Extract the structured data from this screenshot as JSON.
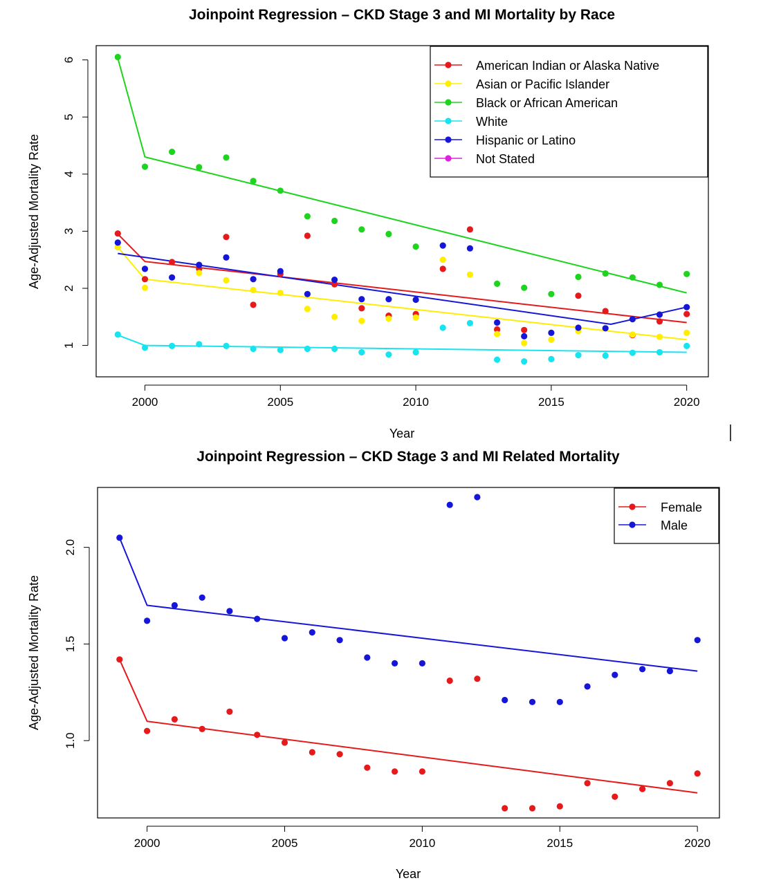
{
  "chart_data": [
    {
      "type": "scatter",
      "title": "Joinpoint Regression – CKD Stage 3 and MI Mortality by Race",
      "xlabel": "Year",
      "ylabel": "Age-Adjusted Mortality Rate",
      "xlim": [
        1998.2,
        2020.8
      ],
      "ylim": [
        0.45,
        6.25
      ],
      "xticks": [
        2000,
        2005,
        2010,
        2015,
        2020
      ],
      "yticks": [
        1,
        2,
        3,
        4,
        5,
        6
      ],
      "legend_position": "top-right",
      "x": [
        1999,
        2000,
        2001,
        2002,
        2003,
        2004,
        2005,
        2006,
        2007,
        2008,
        2009,
        2010,
        2011,
        2012,
        2013,
        2014,
        2015,
        2016,
        2017,
        2018,
        2019,
        2020
      ],
      "series": [
        {
          "name": "American Indian or Alaska Native",
          "color": "#e41a1c",
          "values": [
            2.96,
            2.16,
            2.46,
            2.34,
            2.9,
            1.71,
            2.25,
            2.92,
            2.07,
            1.65,
            1.52,
            1.55,
            2.34,
            3.03,
            1.28,
            1.27,
            null,
            1.87,
            1.6,
            1.18,
            1.42,
            1.55
          ],
          "fit": [
            [
              1999,
              2.95
            ],
            [
              2000,
              2.47
            ],
            [
              2020,
              1.4
            ]
          ]
        },
        {
          "name": "Asian or Pacific Islander",
          "color": "#ffee00",
          "values": [
            2.72,
            2.01,
            null,
            2.27,
            2.14,
            1.97,
            1.92,
            1.64,
            1.5,
            1.43,
            1.47,
            1.49,
            2.5,
            2.24,
            1.2,
            1.04,
            1.1,
            1.25,
            null,
            1.19,
            1.15,
            1.22
          ],
          "fit": [
            [
              1999,
              2.72
            ],
            [
              2000,
              2.16
            ],
            [
              2020,
              1.1
            ]
          ]
        },
        {
          "name": "Black or African American",
          "color": "#1ed41e",
          "values": [
            6.05,
            4.13,
            4.39,
            4.12,
            4.29,
            3.88,
            3.71,
            3.26,
            3.18,
            3.03,
            2.95,
            2.73,
            null,
            null,
            2.08,
            2.01,
            1.9,
            2.2,
            2.26,
            2.19,
            2.06,
            2.25
          ],
          "fit": [
            [
              1999,
              6.03
            ],
            [
              2000,
              4.3
            ],
            [
              2020,
              1.92
            ]
          ]
        },
        {
          "name": "White",
          "color": "#18e4f0",
          "values": [
            1.19,
            0.96,
            0.99,
            1.02,
            0.99,
            0.94,
            0.92,
            0.94,
            0.94,
            0.88,
            0.84,
            0.88,
            1.31,
            1.39,
            0.75,
            0.72,
            0.76,
            0.83,
            0.82,
            0.87,
            0.88,
            0.99
          ],
          "fit": [
            [
              1999,
              1.18
            ],
            [
              2000,
              1.0
            ],
            [
              2020,
              0.88
            ]
          ]
        },
        {
          "name": "Hispanic or Latino",
          "color": "#1616d8",
          "values": [
            2.8,
            2.34,
            2.19,
            2.41,
            2.54,
            2.16,
            2.3,
            1.9,
            2.15,
            1.81,
            1.81,
            1.8,
            2.75,
            2.7,
            1.4,
            1.16,
            1.22,
            1.31,
            1.3,
            1.46,
            1.54,
            1.67
          ],
          "fit": [
            [
              1999,
              2.61
            ],
            [
              2017.2,
              1.37
            ],
            [
              2020,
              1.67
            ]
          ]
        },
        {
          "name": "Not Stated",
          "color": "#e020e0",
          "values": [],
          "fit": []
        }
      ]
    },
    {
      "type": "scatter",
      "title": "Joinpoint Regression – CKD Stage 3 and MI Related Mortality",
      "xlabel": "Year",
      "ylabel": "Age-Adjusted Mortality Rate",
      "xlim": [
        1998.2,
        2020.8
      ],
      "ylim": [
        0.6,
        2.31
      ],
      "xticks": [
        2000,
        2005,
        2010,
        2015,
        2020
      ],
      "yticks": [
        1.0,
        1.5,
        2.0
      ],
      "ytick_labels": [
        "1.0",
        "1.5",
        "2.0"
      ],
      "legend_position": "top-right",
      "x": [
        1999,
        2000,
        2001,
        2002,
        2003,
        2004,
        2005,
        2006,
        2007,
        2008,
        2009,
        2010,
        2011,
        2012,
        2013,
        2014,
        2015,
        2016,
        2017,
        2018,
        2019,
        2020
      ],
      "series": [
        {
          "name": "Female",
          "color": "#e41a1c",
          "values": [
            1.42,
            1.05,
            1.11,
            1.06,
            1.15,
            1.03,
            0.99,
            0.94,
            0.93,
            0.86,
            0.84,
            0.84,
            1.31,
            1.32,
            0.65,
            0.65,
            0.66,
            0.78,
            0.71,
            0.75,
            0.78,
            0.83
          ],
          "fit": [
            [
              1999,
              1.42
            ],
            [
              2000,
              1.1
            ],
            [
              2020,
              0.73
            ]
          ]
        },
        {
          "name": "Male",
          "color": "#1616d8",
          "values": [
            2.05,
            1.62,
            1.7,
            1.74,
            1.67,
            1.63,
            1.53,
            1.56,
            1.52,
            1.43,
            1.4,
            1.4,
            2.22,
            2.26,
            1.21,
            1.2,
            1.2,
            1.28,
            1.34,
            1.37,
            1.36,
            1.52
          ],
          "fit": [
            [
              1999,
              2.05
            ],
            [
              2000,
              1.7
            ],
            [
              2020,
              1.36
            ]
          ]
        }
      ]
    }
  ]
}
